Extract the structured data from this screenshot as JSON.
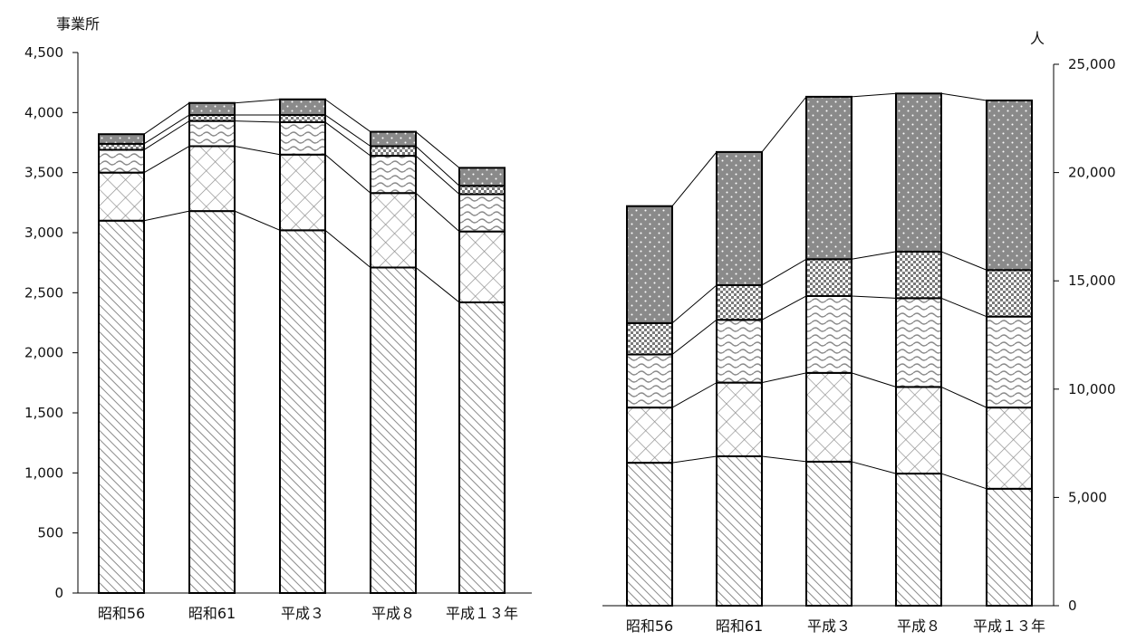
{
  "chart_data": [
    {
      "type": "bar",
      "stacked": true,
      "unit_label": "事業所",
      "categories": [
        "昭和56",
        "昭和61",
        "平成3",
        "平成8",
        "平成13年"
      ],
      "category_labels": [
        "昭和56",
        "昭和61",
        "平成３",
        "平成８",
        "平成１３年"
      ],
      "ylim": [
        0,
        4500
      ],
      "yticks": [
        0,
        500,
        1000,
        1500,
        2000,
        2500,
        3000,
        3500,
        4000,
        4500
      ],
      "ytick_labels": [
        "0",
        "500",
        "1,000",
        "1,500",
        "2,000",
        "2,500",
        "3,000",
        "3,500",
        "4,000",
        "4,500"
      ],
      "series": [
        {
          "pattern": "diagonal",
          "values": [
            3100,
            3180,
            3020,
            2710,
            2420
          ]
        },
        {
          "pattern": "crosshatch",
          "values": [
            400,
            540,
            630,
            620,
            590
          ]
        },
        {
          "pattern": "wave",
          "values": [
            190,
            210,
            270,
            310,
            310
          ]
        },
        {
          "pattern": "checker",
          "values": [
            50,
            50,
            60,
            80,
            70
          ]
        },
        {
          "pattern": "dots",
          "values": [
            80,
            100,
            130,
            120,
            150
          ]
        }
      ]
    },
    {
      "type": "bar",
      "stacked": true,
      "unit_label": "人",
      "categories": [
        "昭和56",
        "昭和61",
        "平成3",
        "平成8",
        "平成13年"
      ],
      "category_labels": [
        "昭和56",
        "昭和61",
        "平成３",
        "平成８",
        "平成１３年"
      ],
      "ylim": [
        0,
        25000
      ],
      "yticks": [
        0,
        5000,
        10000,
        15000,
        20000,
        25000
      ],
      "ytick_labels": [
        "0",
        "5,000",
        "10,000",
        "15,000",
        "20,000",
        "25,000"
      ],
      "series": [
        {
          "pattern": "diagonal",
          "values": [
            6600,
            6900,
            6650,
            6100,
            5400
          ]
        },
        {
          "pattern": "crosshatch",
          "values": [
            2550,
            3400,
            4100,
            4000,
            3750
          ]
        },
        {
          "pattern": "wave",
          "values": [
            2450,
            2900,
            3550,
            4100,
            4200
          ]
        },
        {
          "pattern": "checker",
          "values": [
            1450,
            1600,
            1700,
            2150,
            2150
          ]
        },
        {
          "pattern": "dots",
          "values": [
            5400,
            6150,
            7500,
            7300,
            7830
          ]
        }
      ]
    }
  ]
}
